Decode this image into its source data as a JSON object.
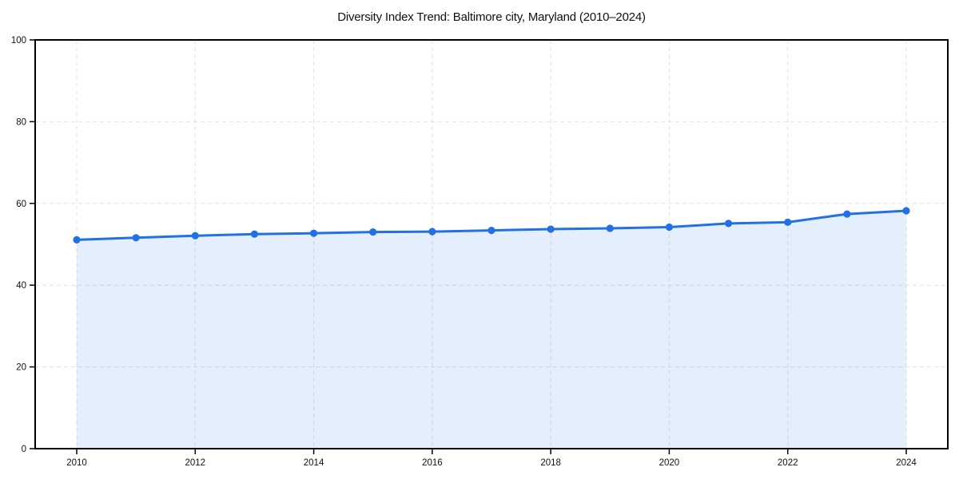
{
  "page": {
    "background": "#ffffff"
  },
  "chart_data": {
    "type": "area",
    "title": "Diversity Index Trend: Baltimore city, Maryland (2010–2024)",
    "series": [
      {
        "name": "Diversity Index",
        "values": [
          51.1,
          51.6,
          52.1,
          52.5,
          52.7,
          53.0,
          53.1,
          53.4,
          53.7,
          53.9,
          54.2,
          55.1,
          55.4,
          57.4,
          58.2
        ]
      }
    ],
    "x": [
      2010,
      2011,
      2012,
      2013,
      2014,
      2015,
      2016,
      2017,
      2018,
      2019,
      2020,
      2021,
      2022,
      2023,
      2024
    ],
    "xticks": [
      2010,
      2012,
      2014,
      2016,
      2018,
      2020,
      2022,
      2024
    ],
    "yticks": [
      0,
      20,
      40,
      60,
      80,
      100
    ],
    "ylim": [
      0,
      100
    ],
    "xlabel": "",
    "ylabel": "",
    "grid": true,
    "legend": "none",
    "colors": {
      "line": "#2270e4",
      "marker": "#2270e4",
      "fill": "#2270e4",
      "fill_opacity": 0.12,
      "grid": "#e2e2e2",
      "axis": "#000000",
      "text": "#111111"
    }
  }
}
